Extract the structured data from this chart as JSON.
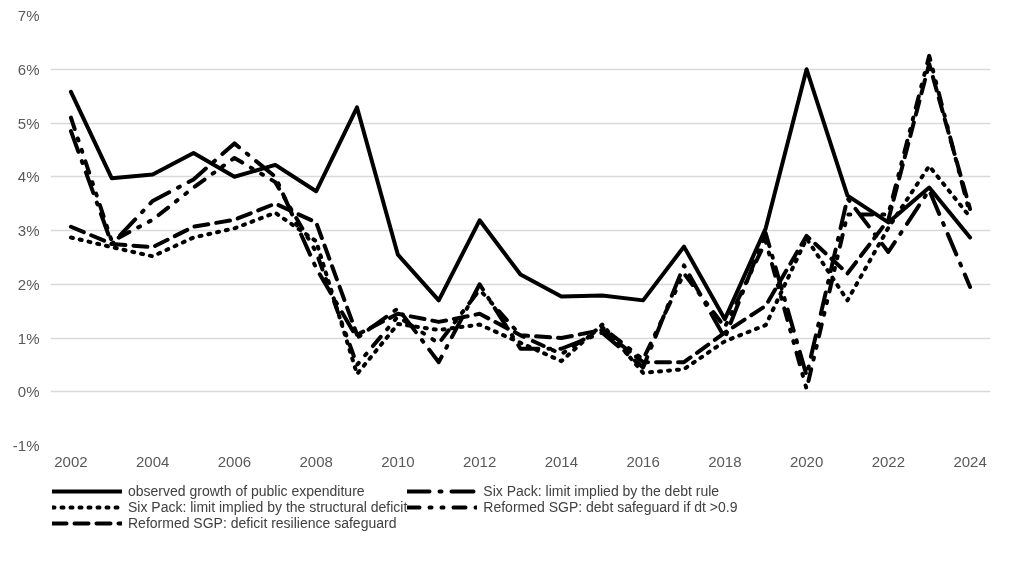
{
  "chart_data": {
    "type": "line",
    "x": [
      2002,
      2003,
      2004,
      2005,
      2006,
      2007,
      2008,
      2009,
      2010,
      2011,
      2012,
      2013,
      2014,
      2015,
      2016,
      2017,
      2018,
      2019,
      2020,
      2021,
      2022,
      2023,
      2024
    ],
    "xlim": [
      2001.5,
      2024.5
    ],
    "xticks": [
      2002,
      2004,
      2006,
      2008,
      2010,
      2012,
      2014,
      2016,
      2018,
      2020,
      2022,
      2024
    ],
    "ylim": [
      -1,
      7
    ],
    "yticks": [
      {
        "value": -1,
        "label": "-1%"
      },
      {
        "value": 0,
        "label": "0%"
      },
      {
        "value": 1,
        "label": "1%"
      },
      {
        "value": 2,
        "label": "2%"
      },
      {
        "value": 3,
        "label": "3%"
      },
      {
        "value": 4,
        "label": "4%"
      },
      {
        "value": 5,
        "label": "5%"
      },
      {
        "value": 6,
        "label": "6%"
      },
      {
        "value": 7,
        "label": "7%"
      }
    ],
    "grid": "y",
    "legend": "bottom",
    "series": [
      {
        "name": "observed growth of public expenditure",
        "color": "#000000",
        "line_style": "solid",
        "values": [
          5.58,
          3.97,
          4.04,
          4.44,
          4.0,
          4.22,
          3.73,
          5.29,
          2.55,
          1.7,
          3.19,
          2.18,
          1.77,
          1.79,
          1.7,
          2.7,
          1.35,
          3.04,
          6.0,
          3.65,
          3.15,
          3.8,
          2.87
        ]
      },
      {
        "name": "Six Pack: limit implied by the structural deficit",
        "color": "#000000",
        "line_style": "dotted",
        "values": [
          2.87,
          2.69,
          2.52,
          2.87,
          3.04,
          3.33,
          2.8,
          0.33,
          1.26,
          1.15,
          1.25,
          0.91,
          0.57,
          1.25,
          0.35,
          0.42,
          0.94,
          1.24,
          2.85,
          1.7,
          3.05,
          4.2,
          3.25
        ]
      },
      {
        "name": "Reformed SGP: deficit resilience safeguard",
        "color": "#000000",
        "line_style": "dashed",
        "values": [
          3.07,
          2.75,
          2.69,
          3.07,
          3.2,
          3.5,
          3.15,
          1.06,
          1.45,
          1.3,
          1.45,
          1.05,
          1.0,
          1.15,
          0.55,
          0.55,
          1.1,
          1.6,
          2.9,
          2.2,
          3.2,
          6.1,
          3.4
        ]
      },
      {
        "name": "Six Pack: limit implied by the debt rule",
        "color": "#000000",
        "line_style": "dashdot",
        "values": [
          4.85,
          2.75,
          3.55,
          3.95,
          4.62,
          4.0,
          2.3,
          1.0,
          1.55,
          0.55,
          2.0,
          0.8,
          0.8,
          1.1,
          0.45,
          2.35,
          1.0,
          2.95,
          0.3,
          3.6,
          2.6,
          3.75,
          1.95
        ]
      },
      {
        "name": "Reformed SGP: debt safeguard if dt >0.9",
        "color": "#000000",
        "line_style": "dashdotdot",
        "values": [
          5.1,
          2.8,
          3.2,
          3.8,
          4.35,
          3.9,
          2.6,
          0.5,
          1.4,
          0.9,
          1.9,
          1.05,
          0.7,
          1.2,
          0.6,
          2.2,
          1.2,
          2.8,
          0.05,
          3.3,
          3.3,
          6.25,
          3.3
        ]
      }
    ]
  }
}
